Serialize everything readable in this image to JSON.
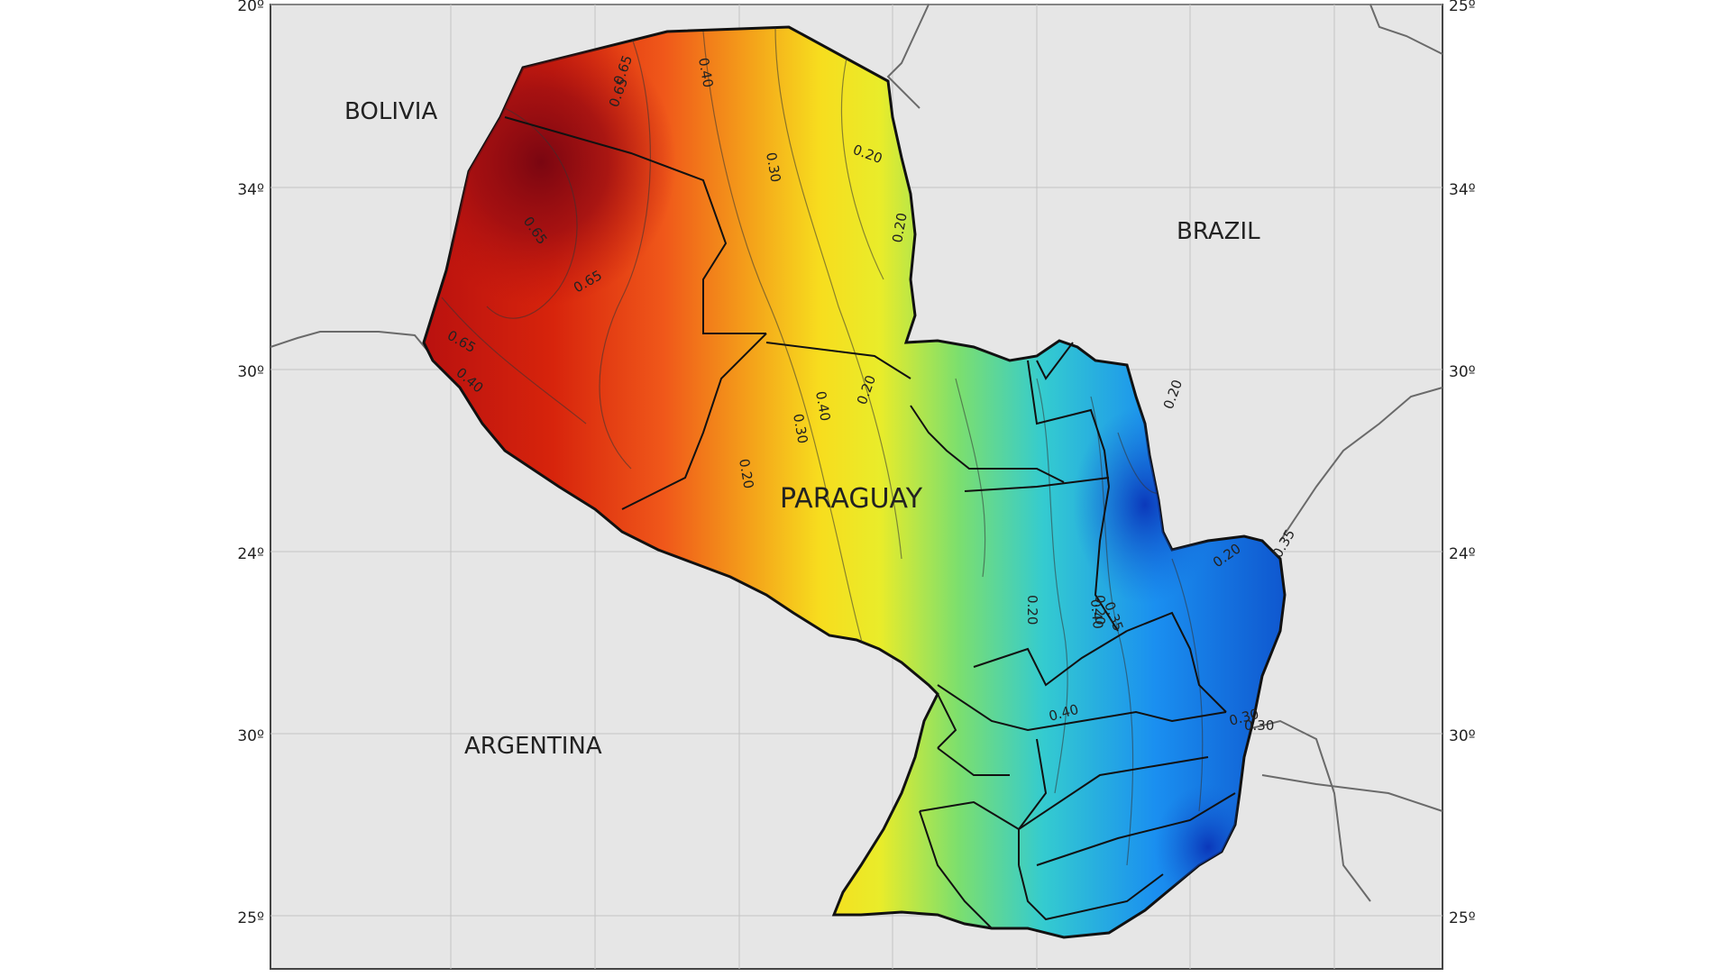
{
  "map": {
    "country_labels": {
      "bolivia": "BOLIVIA",
      "brazil": "BRAZIL",
      "argentina": "ARGENTINA",
      "paraguay": "PARAGUAY"
    },
    "axis_labels": {
      "left": [
        "20º",
        "34º",
        "30º",
        "24º",
        "30º",
        "25º"
      ],
      "right": [
        "25º",
        "34º",
        "30º",
        "24º",
        "30º",
        "25º"
      ]
    },
    "contour_labels": [
      "0.65",
      "0.65",
      "0.65",
      "0.65",
      "0.40",
      "0.30",
      "0.20",
      "0.20",
      "0.20",
      "0.65",
      "0.40",
      "0.30",
      "0.40",
      "0.20",
      "0.20",
      "0.20",
      "0.40",
      "0.20",
      "0.30",
      "0.35",
      "0.20",
      "0.35",
      "0.30",
      "0.40"
    ],
    "colors": {
      "background": "#e6e6e6",
      "high": "#8e0b12",
      "mid_high": "#f07a12",
      "mid": "#f5e916",
      "mid_low": "#6fdc7a",
      "low": "#1466d8",
      "border": "#222222",
      "frame": "#444444"
    }
  }
}
